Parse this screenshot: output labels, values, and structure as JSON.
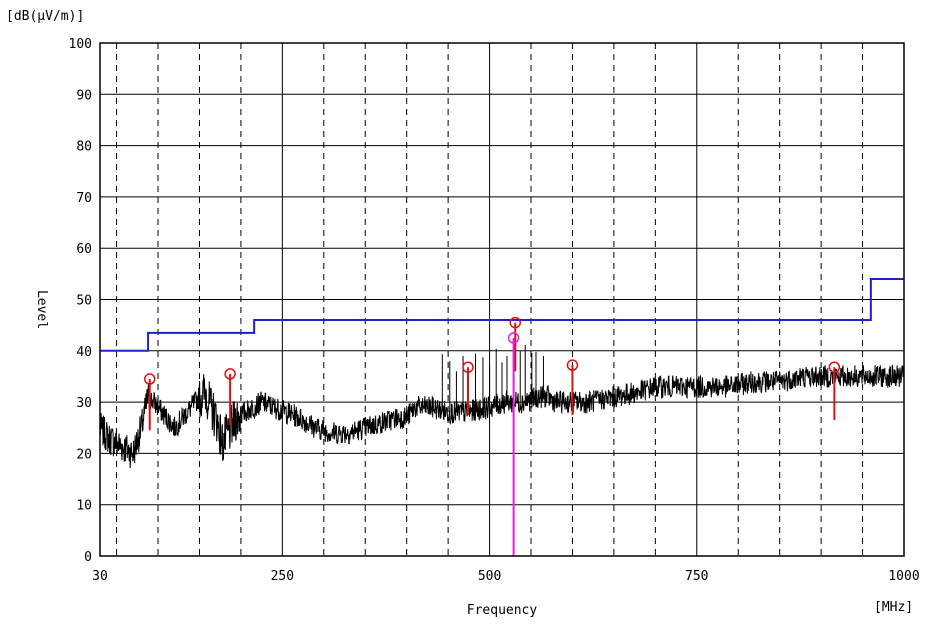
{
  "chart_data": {
    "type": "line",
    "xlabel": "Frequency",
    "ylabel": "Level",
    "y_unit": "[dB(μV/m)]",
    "x_unit": "[MHz]",
    "xlim": [
      30,
      1000
    ],
    "ylim": [
      0,
      100
    ],
    "x_ticks": [
      {
        "value": 30,
        "label": "30"
      },
      {
        "value": 250,
        "label": "250"
      },
      {
        "value": 500,
        "label": "500"
      },
      {
        "value": 750,
        "label": "750"
      },
      {
        "value": 1000,
        "label": "1000"
      }
    ],
    "y_ticks": [
      0,
      10,
      20,
      30,
      40,
      50,
      60,
      70,
      80,
      90,
      100
    ],
    "grid": true,
    "colors": {
      "limit": "#1f1fd8",
      "spectrum": "#000000",
      "peak": "#e01010",
      "marker": "#e020e0"
    },
    "limit_line": [
      [
        30,
        40
      ],
      [
        88,
        40
      ],
      [
        88,
        43.5
      ],
      [
        216,
        43.5
      ],
      [
        216,
        46
      ],
      [
        960,
        46
      ],
      [
        960,
        54
      ],
      [
        1000,
        54
      ]
    ],
    "spectrum_shape": [
      [
        30,
        25
      ],
      [
        40,
        23
      ],
      [
        50,
        22
      ],
      [
        60,
        21
      ],
      [
        70,
        20
      ],
      [
        80,
        25
      ],
      [
        88,
        31
      ],
      [
        95,
        30
      ],
      [
        110,
        27
      ],
      [
        120,
        25
      ],
      [
        135,
        28
      ],
      [
        150,
        31
      ],
      [
        158,
        32
      ],
      [
        163,
        29
      ],
      [
        170,
        27
      ],
      [
        178,
        22
      ],
      [
        185,
        24
      ],
      [
        195,
        27
      ],
      [
        205,
        28
      ],
      [
        215,
        29
      ],
      [
        225,
        30
      ],
      [
        240,
        29
      ],
      [
        255,
        28
      ],
      [
        270,
        27
      ],
      [
        290,
        25
      ],
      [
        310,
        24
      ],
      [
        330,
        24
      ],
      [
        350,
        25
      ],
      [
        370,
        26
      ],
      [
        390,
        27
      ],
      [
        400,
        27
      ],
      [
        410,
        29
      ],
      [
        430,
        29
      ],
      [
        450,
        28
      ],
      [
        470,
        28
      ],
      [
        500,
        29
      ],
      [
        520,
        30
      ],
      [
        540,
        30
      ],
      [
        560,
        31
      ],
      [
        570,
        31
      ],
      [
        580,
        30
      ],
      [
        600,
        30
      ],
      [
        620,
        30
      ],
      [
        650,
        31
      ],
      [
        680,
        32
      ],
      [
        700,
        33
      ],
      [
        730,
        33
      ],
      [
        760,
        33
      ],
      [
        790,
        33
      ],
      [
        820,
        34
      ],
      [
        850,
        34
      ],
      [
        880,
        35
      ],
      [
        910,
        35
      ],
      [
        940,
        35
      ],
      [
        970,
        35
      ],
      [
        1000,
        35
      ]
    ],
    "peaks": [
      {
        "x": 90,
        "y": 34.5,
        "base": 24.5
      },
      {
        "x": 187,
        "y": 35.5,
        "base": 25.5
      },
      {
        "x": 474,
        "y": 36.8,
        "base": 27.5
      },
      {
        "x": 531,
        "y": 45.5,
        "base": 36
      },
      {
        "x": 600,
        "y": 37.2,
        "base": 27.5
      },
      {
        "x": 916,
        "y": 36.8,
        "base": 26.5
      }
    ],
    "marker": {
      "x": 529,
      "y": 42.5
    },
    "spurs": [
      443,
      452,
      460,
      468,
      483,
      492,
      500,
      508,
      515,
      521,
      537,
      543,
      551,
      556,
      565
    ]
  }
}
